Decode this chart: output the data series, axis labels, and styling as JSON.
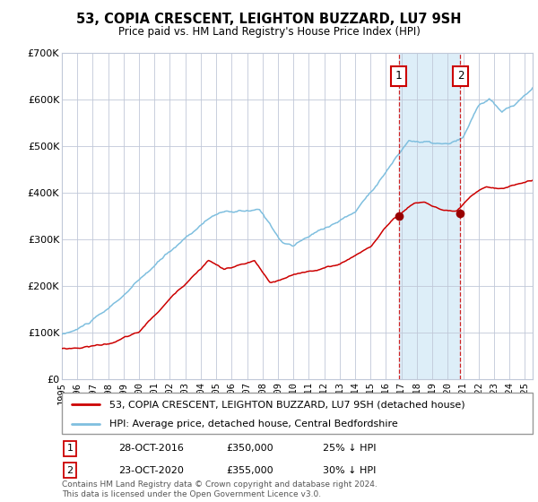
{
  "title": "53, COPIA CRESCENT, LEIGHTON BUZZARD, LU7 9SH",
  "subtitle": "Price paid vs. HM Land Registry's House Price Index (HPI)",
  "legend_line1": "53, COPIA CRESCENT, LEIGHTON BUZZARD, LU7 9SH (detached house)",
  "legend_line2": "HPI: Average price, detached house, Central Bedfordshire",
  "annotation1_date": "28-OCT-2016",
  "annotation1_price": "£350,000",
  "annotation1_hpi": "25% ↓ HPI",
  "annotation1_year": 2016.82,
  "annotation1_value": 350000,
  "annotation2_date": "23-OCT-2020",
  "annotation2_price": "£355,000",
  "annotation2_hpi": "30% ↓ HPI",
  "annotation2_year": 2020.82,
  "annotation2_value": 355000,
  "footer": "Contains HM Land Registry data © Crown copyright and database right 2024.\nThis data is licensed under the Open Government Licence v3.0.",
  "hpi_color": "#7fbfdf",
  "price_color": "#cc0000",
  "background_color": "#ffffff",
  "plot_bg_color": "#ffffff",
  "highlight_color": "#ddeef8",
  "grid_color": "#c0c8d8",
  "ylim": [
    0,
    700000
  ],
  "xlim_start": 1995,
  "xlim_end": 2025.5
}
